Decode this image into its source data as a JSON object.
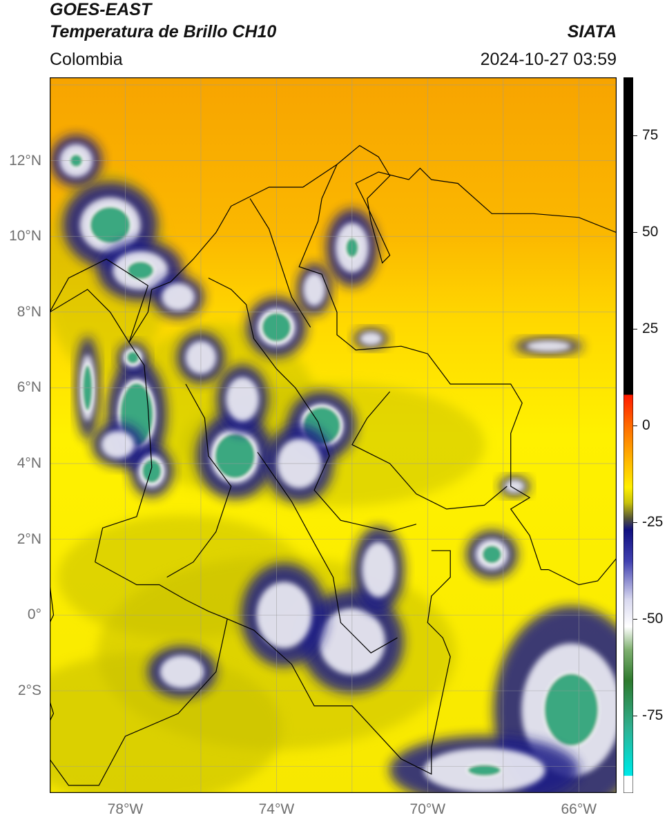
{
  "header": {
    "satellite": "GOES-EAST",
    "product": "Temperatura de Brillo CH10",
    "brand": "SIATA",
    "region": "Colombia",
    "datetime": "2024-10-27 03:59"
  },
  "map": {
    "lat_labels": [
      {
        "value": 12,
        "text": "12°N"
      },
      {
        "value": 10,
        "text": "10°N"
      },
      {
        "value": 8,
        "text": "8°N"
      },
      {
        "value": 6,
        "text": "6°N"
      },
      {
        "value": 4,
        "text": "4°N"
      },
      {
        "value": 2,
        "text": "2°N"
      },
      {
        "value": 0,
        "text": "0°"
      },
      {
        "value": -2,
        "text": "2°S"
      }
    ],
    "lon_labels": [
      {
        "value": -78,
        "text": "78°W"
      },
      {
        "value": -74,
        "text": "74°W"
      },
      {
        "value": -70,
        "text": "70°W"
      },
      {
        "value": -66,
        "text": "66°W"
      }
    ],
    "lat_range": [
      -4.7,
      14.2
    ],
    "lon_range": [
      -80.0,
      -65.0
    ],
    "grid": true,
    "colors": {
      "warm": "#f5a000",
      "mid": "#ffef00",
      "olive": "#c8c000",
      "cold_navy": "#1a1f86",
      "cold_white": "#f0f0f8",
      "coldest_green": "#3aa880",
      "grid": "#9a9a9a"
    }
  },
  "colorbar": {
    "range": [
      -95,
      90
    ],
    "ticks": [
      {
        "value": 75,
        "text": "75"
      },
      {
        "value": 50,
        "text": "50"
      },
      {
        "value": 25,
        "text": "25"
      },
      {
        "value": 0,
        "text": "0"
      },
      {
        "value": -25,
        "text": "-25"
      },
      {
        "value": -50,
        "text": "-50"
      },
      {
        "value": -75,
        "text": "-75"
      }
    ],
    "stops": [
      {
        "value": 90,
        "color": "#000000"
      },
      {
        "value": 8,
        "color": "#000000"
      },
      {
        "value": 7.9,
        "color": "#ff1a00"
      },
      {
        "value": 0,
        "color": "#ff6a00"
      },
      {
        "value": -8,
        "color": "#ffae00"
      },
      {
        "value": -16,
        "color": "#ffef00"
      },
      {
        "value": -20,
        "color": "#c8c20a"
      },
      {
        "value": -24,
        "color": "#555538"
      },
      {
        "value": -27,
        "color": "#101080"
      },
      {
        "value": -35,
        "color": "#4040b0"
      },
      {
        "value": -45,
        "color": "#d8d8ef"
      },
      {
        "value": -52,
        "color": "#ffffff"
      },
      {
        "value": -58,
        "color": "#7fb070"
      },
      {
        "value": -66,
        "color": "#2e7a2e"
      },
      {
        "value": -78,
        "color": "#30b090"
      },
      {
        "value": -88,
        "color": "#00e0d8"
      },
      {
        "value": -90.5,
        "color": "#00e8e8"
      },
      {
        "value": -90.6,
        "color": "#ffffff"
      },
      {
        "value": -95,
        "color": "#ffffff"
      }
    ]
  }
}
